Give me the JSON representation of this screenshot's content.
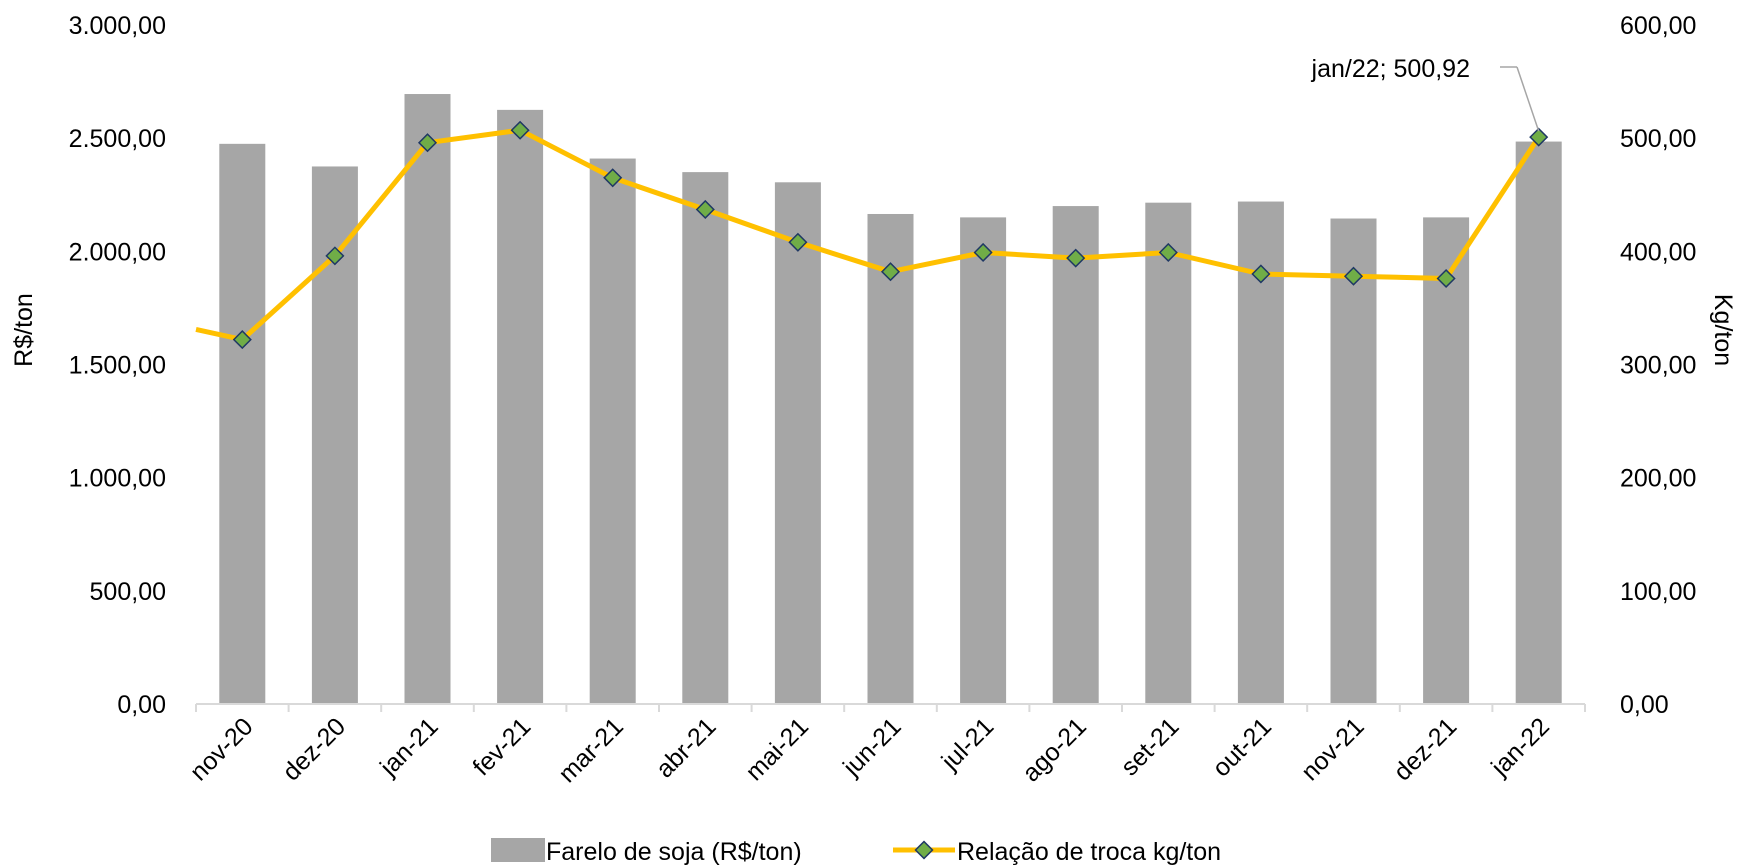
{
  "chart_data": {
    "type": "bar+line",
    "categories": [
      "nov-20",
      "dez-20",
      "jan-21",
      "fev-21",
      "mar-21",
      "abr-21",
      "mai-21",
      "jun-21",
      "jul-21",
      "ago-21",
      "set-21",
      "out-21",
      "nov-21",
      "dez-21",
      "jan-22"
    ],
    "series": [
      {
        "name": "Farelo de soja (R$/ton)",
        "type": "bar",
        "axis": "left",
        "color": "#a6a6a6",
        "values": [
          2475,
          2375,
          2695,
          2625,
          2410,
          2350,
          2305,
          2165,
          2150,
          2200,
          2215,
          2220,
          2145,
          2150,
          2485
        ]
      },
      {
        "name": "Relação de troca kg/ton",
        "type": "line",
        "axis": "right",
        "color": "#ffc000",
        "marker_color": "#70ad47",
        "values": [
          322,
          396,
          496,
          507,
          465,
          437,
          408,
          382,
          399,
          394,
          399,
          380,
          378,
          376,
          500.92
        ]
      }
    ],
    "y_left": {
      "label": "R$/ton",
      "ylim": [
        0,
        3000
      ],
      "ticks": [
        "0,00",
        "500,00",
        "1.000,00",
        "1.500,00",
        "2.000,00",
        "2.500,00",
        "3.000,00"
      ]
    },
    "y_right": {
      "label": "Kg/ton",
      "ylim": [
        0,
        600
      ],
      "ticks": [
        "0,00",
        "100,00",
        "200,00",
        "300,00",
        "400,00",
        "500,00",
        "600,00"
      ]
    },
    "annotation": "jan/22; 500,92",
    "legend_position": "bottom",
    "grid": false
  }
}
